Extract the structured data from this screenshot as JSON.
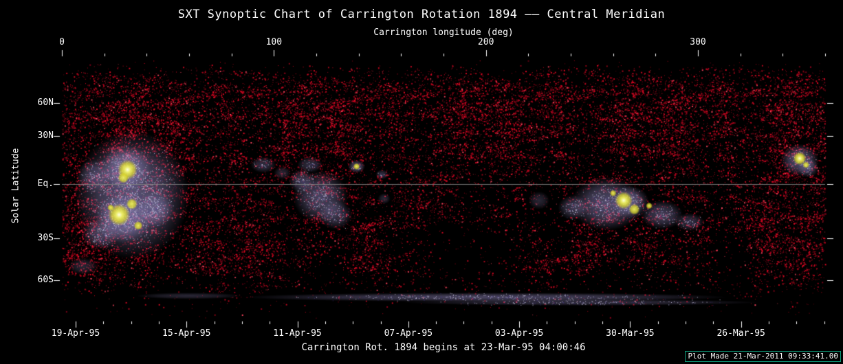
{
  "chart_data": {
    "type": "heatmap",
    "title": "SXT Synoptic Chart of Carrington Rotation 1894 –– Central Meridian",
    "caption": "Carrington Rot. 1894 begins at 23-Mar-95 04:00:46",
    "plot_stamp": "Plot Made 21-Mar-2011 09:33:41.00",
    "top_axis": {
      "label": "Carrington longitude (deg)",
      "ticks": [
        0,
        100,
        200,
        300
      ],
      "range": [
        0,
        360
      ],
      "minor_step": 20
    },
    "left_axis": {
      "label": "Solar Latitude",
      "tick_labels": [
        "60N",
        "30N",
        "Eq.",
        "30S",
        "60S"
      ],
      "tick_latitudes": [
        60,
        30,
        0,
        -30,
        -60
      ]
    },
    "bottom_axis": {
      "tick_labels": [
        "19-Apr-95",
        "15-Apr-95",
        "11-Apr-95",
        "07-Apr-95",
        "03-Apr-95",
        "30-Mar-95",
        "26-Mar-95"
      ],
      "first_tick_frac": 0.018,
      "tick_spacing_frac": 0.1453
    },
    "palette": {
      "background": "#000000",
      "speckle_red": "#e10823",
      "speckle_dark": "#a0001e",
      "speckle_pink": "#ff465f",
      "diffuse_lavender": "#a89cd8",
      "diffuse_bright": "#d8d2f2",
      "diffuse_dark": "#46388c",
      "core_yellow": "#e8e832",
      "core_hot": "#ffffe0",
      "equator_line": "#828282",
      "tick_color": "#ffffff",
      "stamp_border": "#0e9a7a",
      "text": "#ffffff"
    },
    "speckle": {
      "bands": [
        [
          0,
          0
        ],
        [
          0.02,
          0.02
        ],
        [
          0.07,
          0.28
        ],
        [
          0.13,
          0.5
        ],
        [
          0.2,
          0.58
        ],
        [
          0.33,
          0.52
        ],
        [
          0.45,
          0.4
        ],
        [
          0.55,
          0.42
        ],
        [
          0.66,
          0.5
        ],
        [
          0.79,
          0.48
        ],
        [
          0.85,
          0.2
        ],
        [
          0.9,
          0.05
        ],
        [
          1,
          0
        ]
      ],
      "voids": [
        {
          "cx": 0.52,
          "cy": 0.74,
          "rx": 0.12,
          "ry": 0.17,
          "f": 0.05
        },
        {
          "cx": 0.565,
          "cy": 0.5,
          "rx": 0.06,
          "ry": 0.1,
          "f": 0.3
        },
        {
          "cx": 0.64,
          "cy": 0.62,
          "rx": 0.06,
          "ry": 0.16,
          "f": 0.2
        },
        {
          "cx": 0.87,
          "cy": 0.77,
          "rx": 0.06,
          "ry": 0.13,
          "f": 0.12
        },
        {
          "cx": 0.335,
          "cy": 0.8,
          "rx": 0.05,
          "ry": 0.1,
          "f": 0.3
        },
        {
          "cx": 0.73,
          "cy": 0.84,
          "rx": 0.1,
          "ry": 0.08,
          "f": 0.3
        }
      ],
      "boosts": [
        {
          "cx": 0.955,
          "cy": 0.42,
          "rx": 0.055,
          "ry": 0.4,
          "f": 1.8
        },
        {
          "cx": 0.05,
          "cy": 0.5,
          "rx": 0.07,
          "ry": 0.42,
          "f": 1.45
        },
        {
          "cx": 0.09,
          "cy": 0.24,
          "rx": 0.1,
          "ry": 0.13,
          "f": 1.3
        },
        {
          "cx": 0.5,
          "cy": 0.16,
          "rx": 0.38,
          "ry": 0.08,
          "f": 1.25
        },
        {
          "cx": 0.75,
          "cy": 0.3,
          "rx": 0.12,
          "ry": 0.1,
          "f": 1.2
        }
      ]
    },
    "diffuse_regions": [
      {
        "lon": 33,
        "lat": -6,
        "rlon": 27,
        "rlat": 40,
        "alpha": 0.55
      },
      {
        "lon": 30,
        "lat": 10,
        "rlon": 12,
        "rlat": 14,
        "alpha": 0.5
      },
      {
        "lon": 29,
        "lat": -19,
        "rlon": 13,
        "rlat": 14,
        "alpha": 0.55
      },
      {
        "lon": 44,
        "lat": -14,
        "rlon": 9,
        "rlat": 10,
        "alpha": 0.4
      },
      {
        "lon": 18,
        "lat": -28,
        "rlon": 9,
        "rlat": 9,
        "alpha": 0.35
      },
      {
        "lon": 15,
        "lat": 5,
        "rlon": 8,
        "rlat": 10,
        "alpha": 0.3
      },
      {
        "lon": 122,
        "lat": -7,
        "rlon": 13,
        "rlat": 15,
        "alpha": 0.45
      },
      {
        "lon": 113,
        "lat": 2,
        "rlon": 6,
        "rlat": 7,
        "alpha": 0.35
      },
      {
        "lon": 129,
        "lat": -17,
        "rlon": 8,
        "rlat": 8,
        "alpha": 0.35
      },
      {
        "lon": 95,
        "lat": 12,
        "rlon": 6,
        "rlat": 5,
        "alpha": 0.3
      },
      {
        "lon": 117,
        "lat": 12,
        "rlon": 6,
        "rlat": 5,
        "alpha": 0.3
      },
      {
        "lon": 104,
        "lat": 7,
        "rlon": 4,
        "rlat": 4,
        "alpha": 0.25
      },
      {
        "lon": 139,
        "lat": 11,
        "rlon": 4,
        "rlat": 4,
        "alpha": 0.5
      },
      {
        "lon": 151,
        "lat": 6,
        "rlon": 3,
        "rlat": 3,
        "alpha": 0.3
      },
      {
        "lon": 152,
        "lat": -8,
        "rlon": 3,
        "rlat": 3,
        "alpha": 0.25
      },
      {
        "lon": 257,
        "lat": -11,
        "rlon": 17,
        "rlat": 15,
        "alpha": 0.5
      },
      {
        "lon": 268,
        "lat": -10,
        "rlon": 9,
        "rlat": 9,
        "alpha": 0.5
      },
      {
        "lon": 283,
        "lat": -17,
        "rlon": 10,
        "rlat": 8,
        "alpha": 0.4
      },
      {
        "lon": 241,
        "lat": -13,
        "rlon": 7,
        "rlat": 7,
        "alpha": 0.35
      },
      {
        "lon": 296,
        "lat": -21,
        "rlon": 7,
        "rlat": 5,
        "alpha": 0.3
      },
      {
        "lon": 225,
        "lat": -9,
        "rlon": 5,
        "rlat": 5,
        "alpha": 0.25
      },
      {
        "lon": 348,
        "lat": 15,
        "rlon": 9,
        "rlat": 10,
        "alpha": 0.5
      },
      {
        "lon": 352,
        "lat": 10,
        "rlon": 5,
        "rlat": 6,
        "alpha": 0.35
      },
      {
        "lon": 10,
        "lat": -50,
        "rlon": 7,
        "rlat": 6,
        "alpha": 0.25
      },
      {
        "lon": 200,
        "lat": -73,
        "rlon": 115,
        "rlat": 3.5,
        "alpha": 0.45
      },
      {
        "lon": 245,
        "lat": -77,
        "rlon": 85,
        "rlat": 2.5,
        "alpha": 0.3
      },
      {
        "lon": 60,
        "lat": -72,
        "rlon": 25,
        "rlat": 2.5,
        "alpha": 0.25
      }
    ],
    "active_region_cores": [
      {
        "lon": 31,
        "lat": 9,
        "r": 9,
        "hot": true
      },
      {
        "lon": 29,
        "lat": 4,
        "r": 5,
        "hot": false
      },
      {
        "lon": 27,
        "lat": -17,
        "r": 10,
        "hot": true
      },
      {
        "lon": 33,
        "lat": -11,
        "r": 5,
        "hot": false
      },
      {
        "lon": 36,
        "lat": -23,
        "r": 4,
        "hot": false
      },
      {
        "lon": 23,
        "lat": -13,
        "r": 3,
        "hot": false
      },
      {
        "lon": 139,
        "lat": 11,
        "r": 3,
        "hot": false
      },
      {
        "lon": 265,
        "lat": -9,
        "r": 8,
        "hot": true
      },
      {
        "lon": 270,
        "lat": -14,
        "r": 5,
        "hot": false
      },
      {
        "lon": 260,
        "lat": -5,
        "r": 3,
        "hot": false
      },
      {
        "lon": 277,
        "lat": -12,
        "r": 3,
        "hot": false
      },
      {
        "lon": 348,
        "lat": 16,
        "r": 6,
        "hot": true
      },
      {
        "lon": 351,
        "lat": 12,
        "r": 3,
        "hot": false
      }
    ]
  }
}
